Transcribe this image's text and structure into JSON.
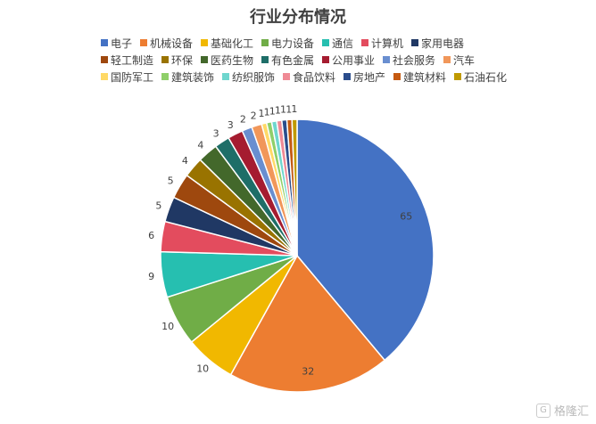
{
  "chart_data": {
    "type": "pie",
    "title": "行业分布情况",
    "legend_position": "top",
    "categories": [
      "电子",
      "机械设备",
      "基础化工",
      "电力设备",
      "通信",
      "计算机",
      "家用电器",
      "轻工制造",
      "环保",
      "医药生物",
      "有色金属",
      "公用事业",
      "社会服务",
      "汽车",
      "国防军工",
      "建筑装饰",
      "纺织服饰",
      "食品饮料",
      "房地产",
      "建筑材料",
      "石油石化"
    ],
    "values": [
      65,
      32,
      10,
      10,
      9,
      6,
      5,
      5,
      4,
      4,
      3,
      3,
      2,
      2,
      1,
      1,
      1,
      1,
      1,
      1,
      1
    ],
    "colors": [
      "#4472C4",
      "#ED7D31",
      "#F1B800",
      "#70AD47",
      "#26BFB0",
      "#E34C5E",
      "#203864",
      "#9E480E",
      "#997300",
      "#43682B",
      "#1E6E68",
      "#A51C30",
      "#698ED0",
      "#F1975A",
      "#FFD966",
      "#8FCF6A",
      "#6FD6CE",
      "#EF8A95",
      "#2B4D8C",
      "#C55A11",
      "#C09A00"
    ]
  },
  "watermark": {
    "text": "格隆汇",
    "icon": "g-logo-icon"
  }
}
